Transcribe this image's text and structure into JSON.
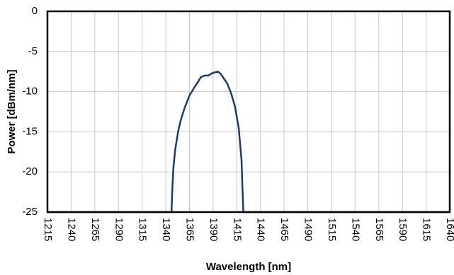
{
  "chart_data": {
    "type": "line",
    "title": "",
    "xlabel": "Wavelength [nm]",
    "ylabel": "Power [dBm/nm]",
    "xlim": [
      1215,
      1640
    ],
    "ylim": [
      -25,
      0
    ],
    "x_ticks": [
      "1215",
      "1240",
      "1265",
      "1290",
      "1315",
      "1340",
      "1365",
      "1390",
      "1415",
      "1440",
      "1465",
      "1490",
      "1515",
      "1540",
      "1565",
      "1590",
      "1615",
      "1640"
    ],
    "y_ticks": [
      "0",
      "-5",
      "-10",
      "-15",
      "-20",
      "-25"
    ],
    "grid": true,
    "series": [
      {
        "color": "#1f3a6e",
        "points": [
          [
            1215,
            -25
          ],
          [
            1346,
            -25
          ],
          [
            1347,
            -22
          ],
          [
            1348,
            -19.5
          ],
          [
            1350,
            -17.2
          ],
          [
            1353,
            -15.0
          ],
          [
            1356,
            -13.5
          ],
          [
            1360,
            -12.0
          ],
          [
            1365,
            -10.5
          ],
          [
            1370,
            -9.5
          ],
          [
            1374,
            -8.8
          ],
          [
            1377,
            -8.2
          ],
          [
            1381,
            -8.0
          ],
          [
            1385,
            -8.0
          ],
          [
            1389,
            -7.7
          ],
          [
            1392,
            -7.6
          ],
          [
            1395,
            -7.5
          ],
          [
            1398,
            -7.8
          ],
          [
            1401,
            -8.3
          ],
          [
            1405,
            -9.0
          ],
          [
            1409,
            -10.2
          ],
          [
            1413,
            -11.8
          ],
          [
            1417,
            -14.5
          ],
          [
            1420,
            -18.5
          ],
          [
            1421,
            -22.0
          ],
          [
            1422,
            -25
          ],
          [
            1640,
            -25
          ]
        ]
      }
    ]
  }
}
